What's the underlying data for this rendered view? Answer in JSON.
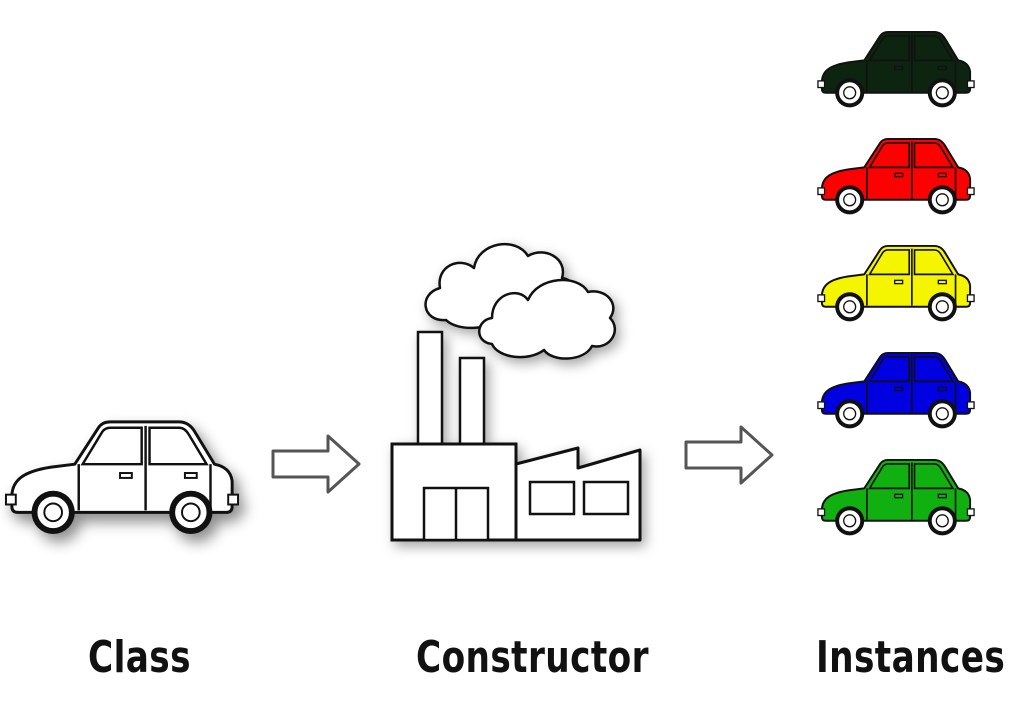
{
  "labels": {
    "class": "Class",
    "constructor": "Constructor",
    "instances": "Instances"
  },
  "colors": {
    "outline": "#111111",
    "class_car_body": "#ffffff",
    "instances": [
      "#0d2410",
      "#ff0000",
      "#f5f500",
      "#0000e0",
      "#10b010"
    ]
  },
  "icons": {
    "class_car": "car-outline-icon",
    "factory": "factory-icon",
    "arrow": "right-arrow-icon",
    "instance_car": "car-filled-icon"
  }
}
